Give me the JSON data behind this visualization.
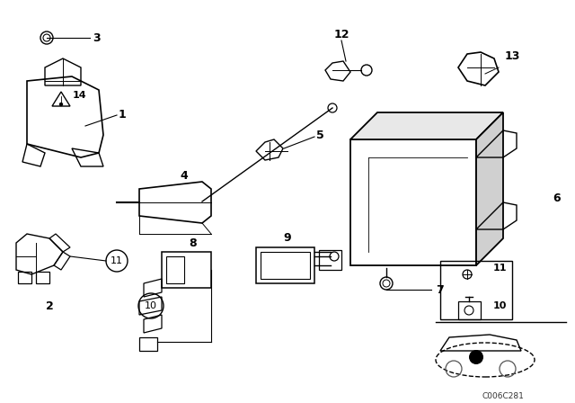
{
  "background_color": "#ffffff",
  "title": "",
  "part_numbers": [
    1,
    2,
    3,
    4,
    5,
    6,
    7,
    8,
    9,
    10,
    11,
    12,
    13,
    14
  ],
  "diagram_code": "C006C281",
  "fig_width": 6.4,
  "fig_height": 4.48,
  "dpi": 100
}
